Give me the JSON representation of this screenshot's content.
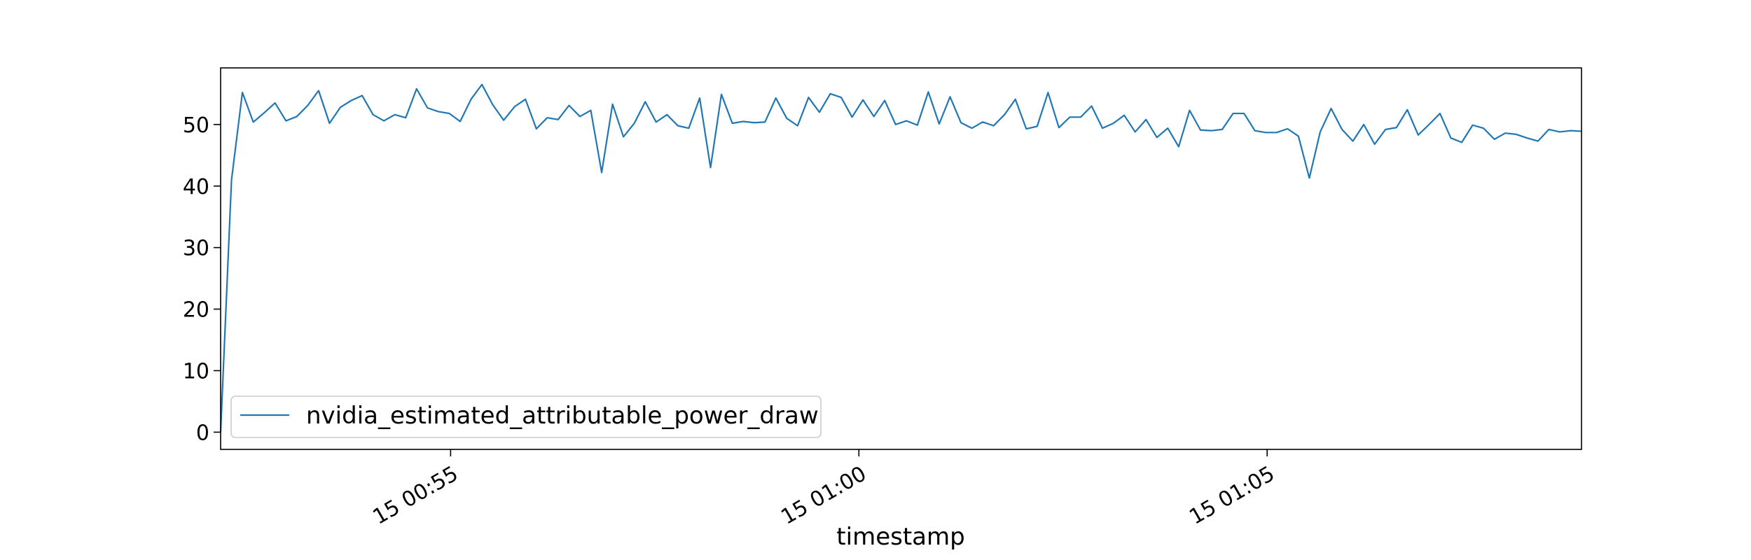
{
  "chart_data": {
    "type": "line",
    "title": "",
    "xlabel": "timestamp",
    "ylabel": "",
    "ylim": [
      -2.8,
      59.2
    ],
    "xlim": [
      "00:52:11",
      "01:08:51"
    ],
    "grid": false,
    "legend_placement": "lower-left",
    "x_ticks": [
      {
        "time": "00:55:00",
        "label": "15 00:55"
      },
      {
        "time": "01:00:00",
        "label": "15 01:00"
      },
      {
        "time": "01:05:00",
        "label": "15 01:05"
      }
    ],
    "y_ticks": [
      0,
      10,
      20,
      30,
      40,
      50
    ],
    "series": [
      {
        "name": "nvidia_estimated_attributable_power_draw",
        "color": "#1f77b4",
        "start_time": "00:52:11",
        "interval_seconds": 8,
        "values": [
          0,
          41,
          55.2,
          50.4,
          51.9,
          53.5,
          50.6,
          51.3,
          53.1,
          55.5,
          50.2,
          52.8,
          53.9,
          54.7,
          51.6,
          50.6,
          51.6,
          51.1,
          55.8,
          52.7,
          52.1,
          51.8,
          50.5,
          54.1,
          56.5,
          53.2,
          50.7,
          52.9,
          54.1,
          49.3,
          51.1,
          50.8,
          53.1,
          51.3,
          52.3,
          42.2,
          53.3,
          48,
          50.2,
          53.7,
          50.4,
          51.6,
          49.8,
          49.4,
          54.3,
          43,
          54.9,
          50.2,
          50.5,
          50.3,
          50.4,
          54.3,
          51,
          49.8,
          54.4,
          52,
          55,
          54.4,
          51.2,
          54,
          51.3,
          53.9,
          50,
          50.6,
          49.9,
          55.3,
          50.1,
          54.5,
          50.3,
          49.4,
          50.4,
          49.8,
          51.6,
          54.1,
          49.3,
          49.7,
          55.2,
          49.5,
          51.2,
          51.2,
          53,
          49.4,
          50.2,
          51.5,
          48.8,
          50.8,
          47.9,
          49.4,
          46.4,
          52.3,
          49.1,
          49,
          49.2,
          51.8,
          51.8,
          49,
          48.7,
          48.7,
          49.3,
          48.1,
          41.3,
          48.8,
          52.6,
          49.2,
          47.3,
          50,
          46.8,
          49.2,
          49.5,
          52.4,
          48.3,
          50,
          51.8,
          47.8,
          47.1,
          49.9,
          49.4,
          47.6,
          48.6,
          48.4,
          47.8,
          47.3,
          49.2,
          48.8,
          49,
          48.9
        ]
      }
    ]
  }
}
